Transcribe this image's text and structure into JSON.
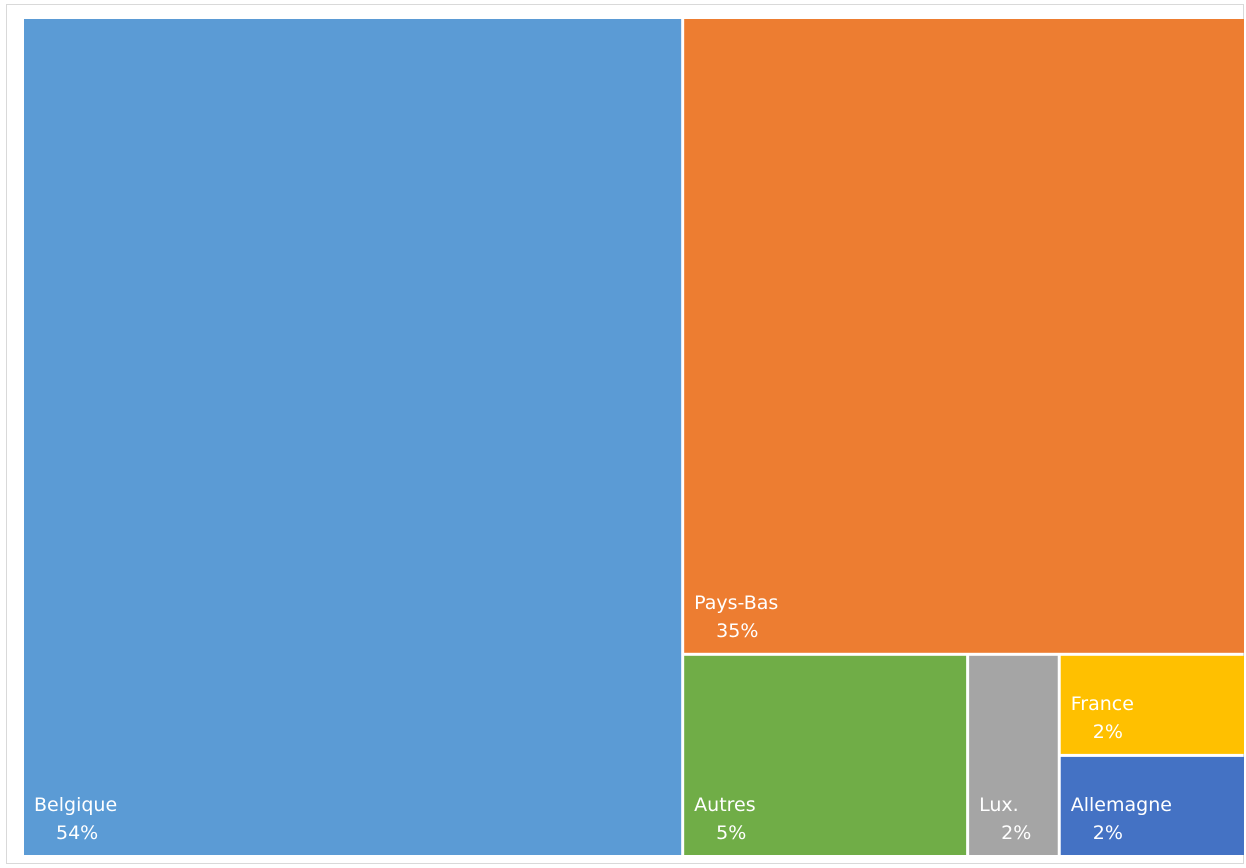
{
  "chart_data": {
    "type": "treemap",
    "title": "",
    "tiles": [
      {
        "name": "Belgique",
        "value": 54,
        "label": "54%",
        "color": "#5B9BD5"
      },
      {
        "name": "Pays-Bas",
        "value": 35,
        "label": "35%",
        "color": "#ED7D31"
      },
      {
        "name": "Autres",
        "value": 5,
        "label": "5%",
        "color": "#70AD47"
      },
      {
        "name": "Lux.",
        "value": 2,
        "label": "2%",
        "color": "#A5A5A5"
      },
      {
        "name": "France",
        "value": 2,
        "label": "2%",
        "color": "#FFC000"
      },
      {
        "name": "Allemagne",
        "value": 2,
        "label": "2%",
        "color": "#4472C4"
      }
    ]
  }
}
